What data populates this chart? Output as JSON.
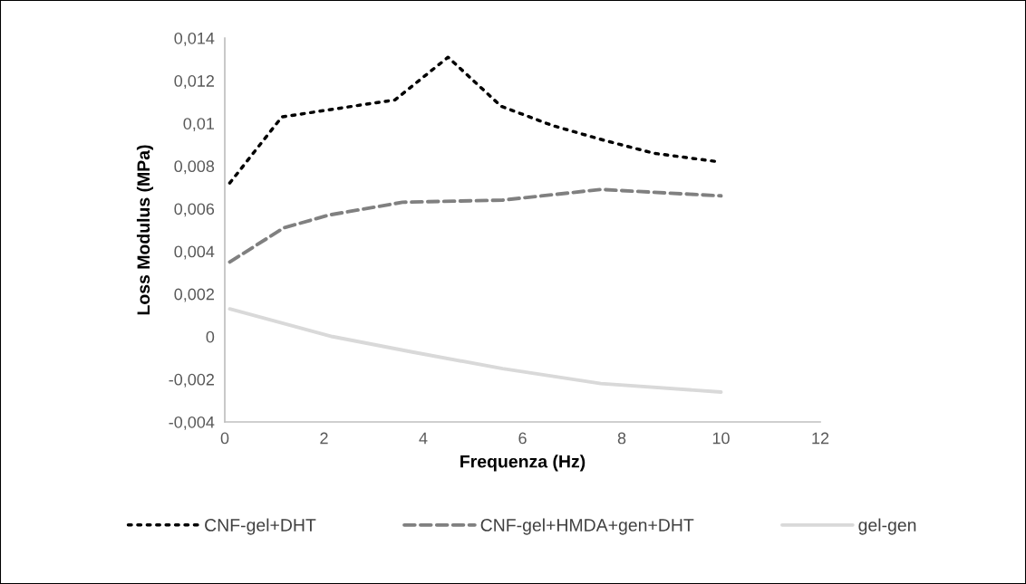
{
  "chart_data": {
    "type": "line",
    "xlabel": "Frequenza (Hz)",
    "ylabel": "Loss Modulus (MPa)",
    "xlim": [
      0,
      12
    ],
    "xticks": [
      0,
      2,
      4,
      6,
      8,
      10,
      12
    ],
    "ylim": [
      -0.004,
      0.014
    ],
    "yticks": [
      {
        "value": -0.004,
        "label": "-0,004"
      },
      {
        "value": -0.002,
        "label": "-0,002"
      },
      {
        "value": 0,
        "label": "0"
      },
      {
        "value": 0.002,
        "label": "0,002"
      },
      {
        "value": 0.004,
        "label": "0,004"
      },
      {
        "value": 0.006,
        "label": "0,006"
      },
      {
        "value": 0.008,
        "label": "0,008"
      },
      {
        "value": 0.01,
        "label": "0,01"
      },
      {
        "value": 0.012,
        "label": "0,012"
      },
      {
        "value": 0.014,
        "label": "0,014"
      }
    ],
    "grid": false,
    "legend": "bottom",
    "marker": "none",
    "series": [
      {
        "name": "CNF-gel+DHT",
        "color": "#000000",
        "line_style": "dotted",
        "x": [
          0.1,
          1.15,
          3.43,
          4.5,
          5.57,
          6.6,
          7.65,
          8.64,
          9.94
        ],
        "values": [
          0.0072,
          0.0103,
          0.0111,
          0.0131,
          0.0108,
          0.0099,
          0.0092,
          0.0086,
          0.0082
        ]
      },
      {
        "name": "CNF-gel+HMDA+gen+DHT",
        "color": "#808080",
        "line_style": "dashed",
        "x": [
          0.1,
          1.19,
          2.1,
          3.58,
          5.6,
          7.58,
          10.0
        ],
        "values": [
          0.0035,
          0.0051,
          0.0057,
          0.0063,
          0.0064,
          0.0069,
          0.0066
        ]
      },
      {
        "name": "gel-gen",
        "color": "#d9d9d9",
        "line_style": "solid",
        "x": [
          0.1,
          2.17,
          3.73,
          5.6,
          7.58,
          10.0
        ],
        "values": [
          0.0013,
          0.0,
          -0.0007,
          -0.0015,
          -0.0022,
          -0.0026
        ]
      }
    ]
  }
}
